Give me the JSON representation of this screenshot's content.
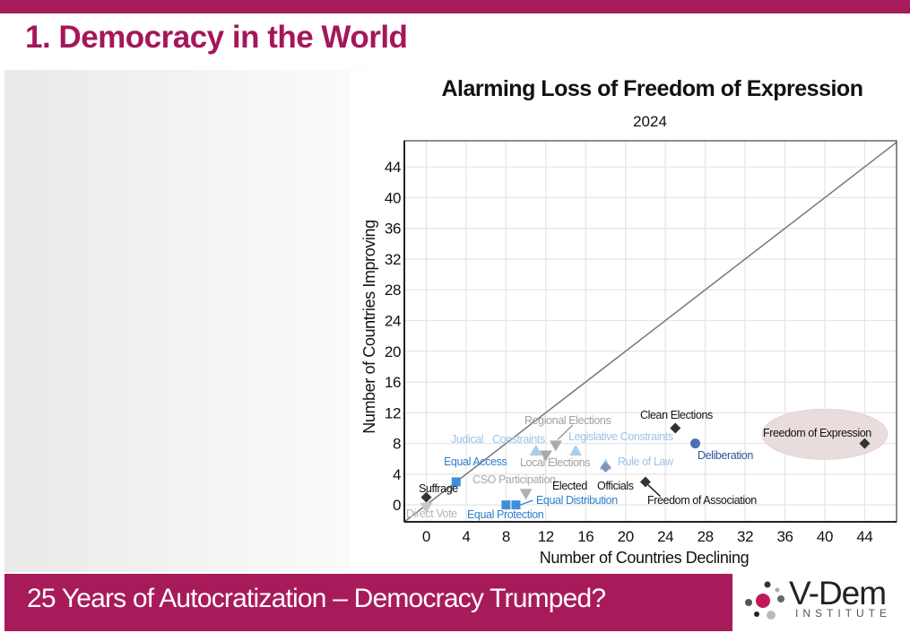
{
  "slide": {
    "title": "1. Democracy in the World",
    "footer": "25 Years of Autocratization – Democracy Trumped?",
    "logo": {
      "name": "V-Dem",
      "sub": "INSTITUTE"
    },
    "accent_color": "#a81b5a"
  },
  "chart_data": {
    "type": "scatter",
    "title": "Alarming Loss of Freedom of Expression",
    "subtitle": "2024",
    "xlabel": "Number of Countries Declining",
    "ylabel": "Number of Countries Improving",
    "xlim": [
      -2.2,
      47.2
    ],
    "ylim": [
      -2.2,
      47.4
    ],
    "xticks": [
      "0",
      "4",
      "8",
      "12",
      "16",
      "20",
      "24",
      "28",
      "32",
      "36",
      "40",
      "44"
    ],
    "yticks": [
      "0",
      "4",
      "8",
      "12",
      "16",
      "20",
      "24",
      "28",
      "32",
      "36",
      "40",
      "44"
    ],
    "grid": true,
    "diagonal": "y = x",
    "highlight": "Freedom of Expression",
    "points": [
      {
        "label": "Direct Vote",
        "x": 0,
        "y": -0.3,
        "shape": "triangle-down",
        "color": "#c8c8c8",
        "label_color": "#b5b5b5"
      },
      {
        "label": "Suffrage",
        "x": 0,
        "y": 1,
        "shape": "diamond",
        "color": "#333333",
        "label_color": "#111111"
      },
      {
        "label": "Equal Access",
        "x": 3,
        "y": 3,
        "shape": "square",
        "color": "#3f8fd8",
        "label_color": "#2f7fcf"
      },
      {
        "label": "Equal Protection",
        "x": 8,
        "y": 0,
        "shape": "square",
        "color": "#3f8fd8",
        "label_color": "#2f7fcf"
      },
      {
        "label": "Equal Distribution",
        "x": 9,
        "y": 0,
        "shape": "square",
        "color": "#3f8fd8",
        "label_color": "#2f7fcf"
      },
      {
        "label": "CSO Participation",
        "x": 10,
        "y": 1.5,
        "shape": "triangle-down",
        "color": "#b0b0b0",
        "label_color": "#a8a8a8"
      },
      {
        "label": "Judical Constraints",
        "x": 11,
        "y": 7,
        "shape": "triangle-up",
        "color": "#a9cdee",
        "label_color": "#9cc4ea"
      },
      {
        "label": "Local Elections",
        "x": 12,
        "y": 6.5,
        "shape": "triangle-down",
        "color": "#aaaaaa",
        "label_color": "#a0a0a0"
      },
      {
        "label": "Regional Elections",
        "x": 13,
        "y": 7.8,
        "shape": "triangle-down",
        "color": "#aaaaaa",
        "label_color": "#a0a0a0"
      },
      {
        "label": "Legislative Constraints",
        "x": 15,
        "y": 7,
        "shape": "triangle-up",
        "color": "#a9cdee",
        "label_color": "#9cc4ea"
      },
      {
        "label": "Rule of Law",
        "x": 18,
        "y": 5.2,
        "shape": "triangle-up",
        "color": "#a9cdee",
        "label_color": "#9cc4ea"
      },
      {
        "label": "Elected Officials",
        "x": 18,
        "y": 4.9,
        "shape": "diamond",
        "color": "#7f98b8",
        "label_color": "#111111"
      },
      {
        "label": "Freedom of Association",
        "x": 22,
        "y": 3,
        "shape": "diamond",
        "color": "#333333",
        "label_color": "#111111"
      },
      {
        "label": "Clean Elections",
        "x": 25,
        "y": 10,
        "shape": "diamond",
        "color": "#333333",
        "label_color": "#111111"
      },
      {
        "label": "Deliberation",
        "x": 27,
        "y": 8,
        "shape": "circle",
        "color": "#4a72b5",
        "label_color": "#2f56a0"
      },
      {
        "label": "Freedom of Expression",
        "x": 44,
        "y": 8,
        "shape": "diamond",
        "color": "#333333",
        "label_color": "#111111"
      }
    ],
    "label_text": {
      "judical": "Judical",
      "constraints": "Constraints",
      "elected": "Elected",
      "officials": "Officials"
    }
  }
}
